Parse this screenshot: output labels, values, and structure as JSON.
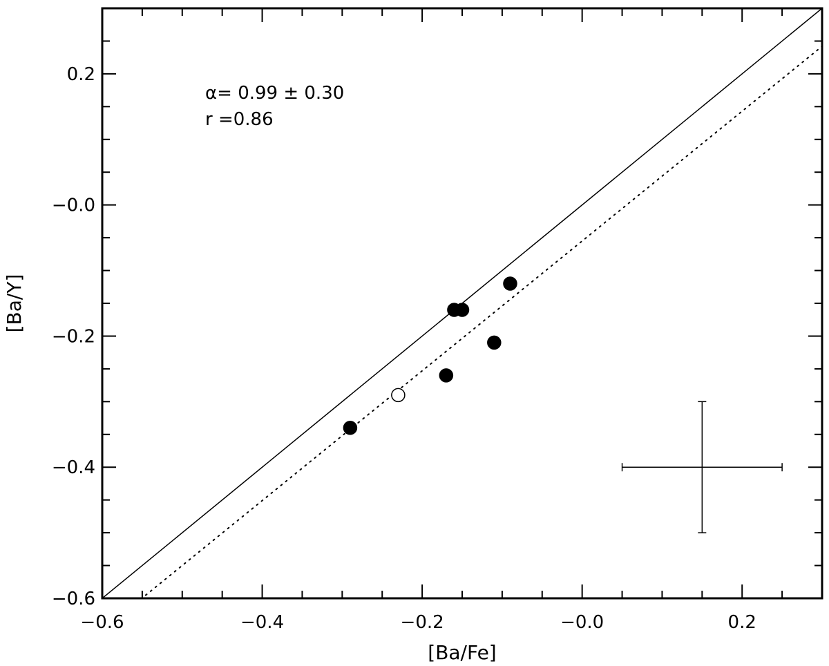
{
  "chart_data": {
    "type": "scatter",
    "title": "",
    "xlabel": "[Ba/Fe]",
    "ylabel": "[Ba/Y]",
    "xlim": [
      -0.6,
      0.3
    ],
    "ylim": [
      -0.6,
      0.3
    ],
    "xticks": [
      {
        "value": -0.6,
        "label": "−0.6"
      },
      {
        "value": -0.4,
        "label": "−0.4"
      },
      {
        "value": -0.2,
        "label": "−0.2"
      },
      {
        "value": 0.0,
        "label": "−0.0"
      },
      {
        "value": 0.2,
        "label": "0.2"
      }
    ],
    "yticks": [
      {
        "value": -0.6,
        "label": "−0.6"
      },
      {
        "value": -0.4,
        "label": "−0.4"
      },
      {
        "value": -0.2,
        "label": "−0.2"
      },
      {
        "value": 0.0,
        "label": "−0.0"
      },
      {
        "value": 0.2,
        "label": "0.2"
      }
    ],
    "minor_tick_step": 0.05,
    "series": [
      {
        "name": "filled",
        "marker": "filled-circle",
        "points": [
          {
            "x": -0.29,
            "y": -0.34
          },
          {
            "x": -0.17,
            "y": -0.26
          },
          {
            "x": -0.16,
            "y": -0.16
          },
          {
            "x": -0.15,
            "y": -0.16
          },
          {
            "x": -0.11,
            "y": -0.21
          },
          {
            "x": -0.09,
            "y": -0.12
          }
        ]
      },
      {
        "name": "open",
        "marker": "open-circle",
        "points": [
          {
            "x": -0.23,
            "y": -0.29
          }
        ]
      }
    ],
    "lines": [
      {
        "name": "one-to-one-line",
        "style": "solid",
        "slope": 1.0,
        "intercept": 0.0
      },
      {
        "name": "fit-line",
        "style": "dotted",
        "slope": 0.99,
        "intercept": -0.055
      }
    ],
    "error_bar": {
      "x": 0.15,
      "y": -0.4,
      "x_err": 0.1,
      "y_err": 0.1
    },
    "annotations": {
      "alpha_text": "α= 0.99 ± 0.30",
      "r_text": "r =0.86"
    },
    "grid": false,
    "legend": "none"
  }
}
